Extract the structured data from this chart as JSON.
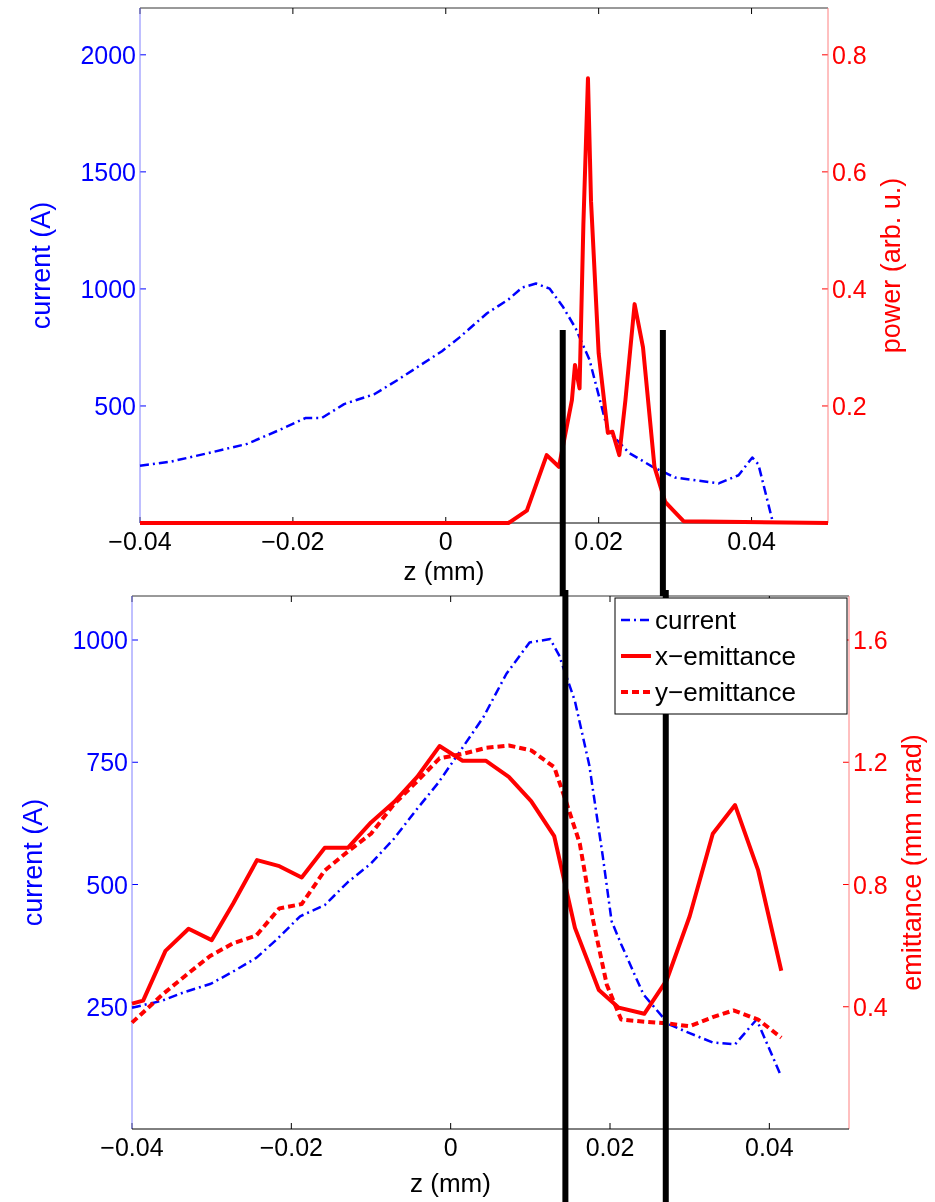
{
  "chart_data": [
    {
      "type": "line",
      "xlabel": "z (mm)",
      "ylabel": "current (A)",
      "y2label": "power (arb. u.)",
      "xlim": [
        -0.04,
        0.05
      ],
      "xticks": [
        {
          "value": -0.04,
          "label": "−0.04"
        },
        {
          "value": -0.02,
          "label": "−0.02"
        },
        0,
        {
          "value": 0.02,
          "label": "0.02"
        },
        {
          "value": 0.04,
          "label": "0.04"
        }
      ],
      "ylim": [
        0,
        2200
      ],
      "yticks": [
        500,
        1000,
        1500,
        2000
      ],
      "y2lim": [
        0,
        0.88
      ],
      "y2ticks": [
        0.2,
        0.4,
        0.6,
        0.8
      ],
      "series": [
        {
          "color": "#0000ff",
          "line_style": "dashdot",
          "x": [
            -0.04,
            -0.036,
            -0.0314,
            -0.026,
            -0.022,
            -0.0183,
            -0.0162,
            -0.0133,
            -0.0093,
            -0.0063,
            -0.0005,
            0.0018,
            0.0054,
            0.0082,
            0.01,
            0.0118,
            0.0136,
            0.0153,
            0.017,
            0.0188,
            0.02,
            0.0212,
            0.024,
            0.027,
            0.03,
            0.0357,
            0.0383,
            0.0401,
            0.0409,
            0.0427
          ],
          "values": [
            245,
            262,
            296,
            338,
            394,
            449,
            449,
            508,
            551,
            611,
            734,
            793,
            896,
            955,
            1006,
            1023,
            1001,
            925,
            831,
            697,
            546,
            394,
            299,
            241,
            194,
            169,
            204,
            280,
            250,
            14
          ]
        },
        {
          "color": "#ff0000",
          "line_style": "solid",
          "axis": "y2",
          "x": [
            -0.04,
            0.0082,
            0.0106,
            0.0132,
            0.0148,
            0.0165,
            0.0169,
            0.0175,
            0.018,
            0.0186,
            0.019,
            0.02,
            0.0212,
            0.0218,
            0.0227,
            0.0235,
            0.0247,
            0.0258,
            0.0273,
            0.0287,
            0.0311,
            0.05
          ],
          "values": [
            0,
            0,
            0.021,
            0.116,
            0.096,
            0.21,
            0.27,
            0.23,
            0.51,
            0.76,
            0.55,
            0.29,
            0.154,
            0.156,
            0.116,
            0.21,
            0.374,
            0.3,
            0.096,
            0.036,
            0.003,
            0
          ]
        }
      ],
      "ref_lines": [
        {
          "axis": "x",
          "value": 0.0153,
          "color": "#000000"
        },
        {
          "axis": "x",
          "value": 0.0284,
          "color": "#000000"
        }
      ]
    },
    {
      "type": "line",
      "xlabel": "z (mm)",
      "ylabel": "current (A)",
      "y2label": "emittance (mm mrad)",
      "xlim": [
        -0.04,
        0.05
      ],
      "xticks": [
        {
          "value": -0.04,
          "label": "−0.04"
        },
        {
          "value": -0.02,
          "label": "−0.02"
        },
        0,
        {
          "value": 0.02,
          "label": "0.02"
        },
        {
          "value": 0.04,
          "label": "0.04"
        }
      ],
      "ylim": [
        0,
        1090
      ],
      "yticks": [
        250,
        500,
        750,
        1000
      ],
      "y2lim": [
        0,
        1.744
      ],
      "y2ticks": [
        0.4,
        0.8,
        1.2,
        1.6
      ],
      "legend": "top right",
      "series": [
        {
          "name": "current",
          "color": "#0000ff",
          "line_style": "dashdot",
          "x": [
            -0.04,
            -0.0363,
            -0.0334,
            -0.0301,
            -0.0273,
            -0.0244,
            -0.0218,
            -0.0189,
            -0.0158,
            -0.0129,
            -0.01,
            -0.0071,
            -0.0042,
            -0.0016,
            0.0012,
            0.0041,
            0.007,
            0.0099,
            0.0125,
            0.0136,
            0.0156,
            0.0174,
            0.0191,
            0.0202,
            0.0214,
            0.0242,
            0.0274,
            0.03,
            0.0329,
            0.0357,
            0.0384,
            0.0415
          ],
          "values": [
            248,
            262,
            280,
            297,
            322,
            350,
            388,
            435,
            458,
            505,
            543,
            594,
            655,
            707,
            773,
            842,
            931,
            995,
            1002,
            969,
            875,
            744,
            557,
            425,
            378,
            275,
            214,
            196,
            177,
            173,
            224,
            107
          ]
        },
        {
          "name": "x−emittance",
          "color": "#ff0000",
          "line_style": "solid",
          "axis": "y2",
          "x": [
            -0.04,
            -0.0386,
            -0.0358,
            -0.0329,
            -0.03,
            -0.0273,
            -0.0243,
            -0.0215,
            -0.0187,
            -0.0158,
            -0.0129,
            -0.01,
            -0.0071,
            -0.0042,
            -0.0014,
            0.0015,
            0.0044,
            0.0073,
            0.0101,
            0.013,
            0.0156,
            0.0186,
            0.0211,
            0.0243,
            0.0271,
            0.03,
            0.0329,
            0.0357,
            0.0386,
            0.0415
          ],
          "values": [
            0.41,
            0.42,
            0.583,
            0.655,
            0.618,
            0.738,
            0.88,
            0.86,
            0.823,
            0.92,
            0.92,
            1.003,
            1.07,
            1.152,
            1.253,
            1.205,
            1.205,
            1.152,
            1.073,
            0.958,
            0.658,
            0.455,
            0.397,
            0.377,
            0.486,
            0.696,
            0.966,
            1.06,
            0.846,
            0.518
          ]
        },
        {
          "name": "y−emittance",
          "color": "#ff0000",
          "line_style": "dashed",
          "axis": "y2",
          "x": [
            -0.04,
            -0.036,
            -0.033,
            -0.0302,
            -0.0273,
            -0.0244,
            -0.0215,
            -0.0187,
            -0.0158,
            -0.0129,
            -0.01,
            -0.0071,
            -0.0042,
            -0.0014,
            0.0015,
            0.0044,
            0.0073,
            0.0101,
            0.013,
            0.0145,
            0.0162,
            0.0179,
            0.0196,
            0.0214,
            0.0243,
            0.0274,
            0.03,
            0.0329,
            0.0355,
            0.0386,
            0.0415
          ],
          "values": [
            0.348,
            0.444,
            0.508,
            0.566,
            0.608,
            0.633,
            0.722,
            0.736,
            0.846,
            0.908,
            0.966,
            1.063,
            1.138,
            1.213,
            1.227,
            1.247,
            1.255,
            1.239,
            1.184,
            1.07,
            0.935,
            0.68,
            0.472,
            0.358,
            0.351,
            0.345,
            0.336,
            0.366,
            0.388,
            0.358,
            0.299
          ]
        }
      ],
      "ref_lines": [
        {
          "axis": "x",
          "value": 0.0144,
          "color": "#000000"
        },
        {
          "axis": "x",
          "value": 0.027,
          "color": "#000000"
        }
      ]
    }
  ]
}
